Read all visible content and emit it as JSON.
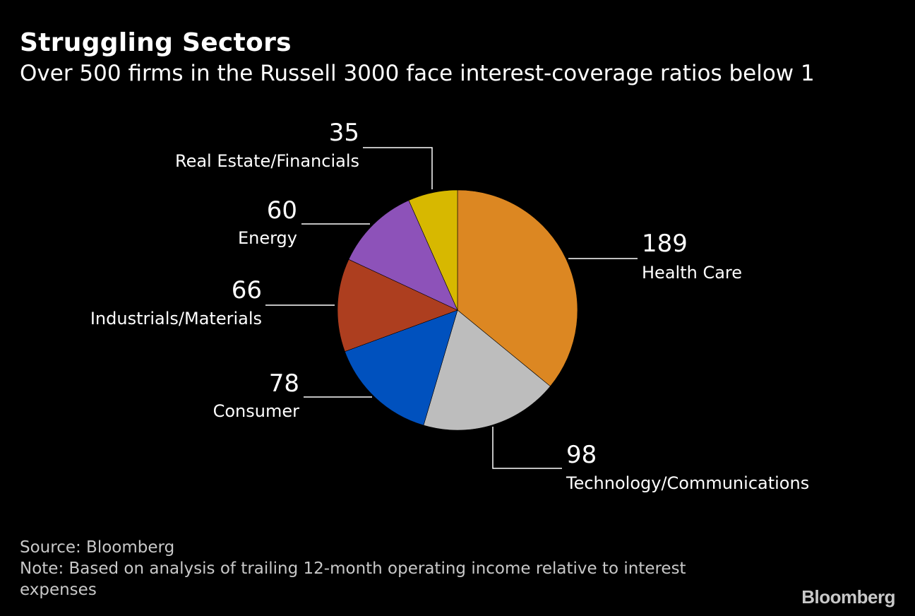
{
  "header": {
    "title": "Struggling Sectors",
    "subtitle": "Over 500 firms in the Russell 3000 face interest-coverage ratios below 1"
  },
  "chart_data": {
    "type": "pie",
    "title": "Struggling Sectors",
    "subtitle": "Over 500 firms in the Russell 3000 face interest-coverage ratios below 1",
    "slices": [
      {
        "label": "Health Care",
        "value": 189,
        "color": "#dc8722"
      },
      {
        "label": "Technology/Communications",
        "value": 98,
        "color": "#bdbdbd"
      },
      {
        "label": "Consumer",
        "value": 78,
        "color": "#0051be"
      },
      {
        "label": "Industrials/Materials",
        "value": 66,
        "color": "#ad3e1f"
      },
      {
        "label": "Energy",
        "value": 60,
        "color": "#8d52b9"
      },
      {
        "label": "Real Estate/Financials",
        "value": 35,
        "color": "#d7b800"
      }
    ],
    "start": "12 o'clock",
    "direction": "clockwise"
  },
  "footer": {
    "source": "Source: Bloomberg",
    "note": "Note: Based on analysis of trailing 12-month operating income relative to interest expenses"
  },
  "brand": {
    "logo_text": "Bloomberg"
  }
}
